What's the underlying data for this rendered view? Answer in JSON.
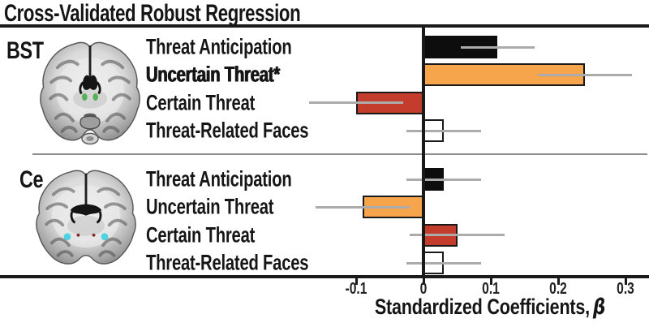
{
  "figure": {
    "title": "Cross-Validated Robust Regression"
  },
  "chart_data": {
    "type": "bar",
    "orientation": "horizontal",
    "title": "Cross-Validated Robust Regression",
    "xlabel": "Standardized Coefficients, β",
    "xlabel_text": "Standardized Coefficients,",
    "xlabel_symbol": "β",
    "xticks": [
      -0.1,
      0,
      0.1,
      0.2,
      0.3
    ],
    "xtick_labels": [
      "-0.1",
      "0",
      "0.1",
      "0.2",
      "0.3"
    ],
    "xlim": [
      -0.63,
      0.34
    ],
    "grid": false,
    "legend_position": "none",
    "error_bars": true,
    "bar_colors": {
      "black": "#0D0D0D",
      "orange": "#F6A54C",
      "red": "#C43C2B",
      "white": "#FFFFFF"
    },
    "bar_outline_color": "#1A1A1A",
    "error_bar_color": "#ABABAB",
    "groups": [
      {
        "name": "BST",
        "brain_icon": "coronal-brain-slice",
        "highlight_color": "#58B05A",
        "bars": [
          {
            "label": "Threat Anticipation",
            "value": 0.11,
            "ci": 0.055,
            "color": "black",
            "emphasized": false
          },
          {
            "label": "Uncertain Threat*",
            "value": 0.24,
            "ci": 0.07,
            "color": "orange",
            "emphasized": true
          },
          {
            "label": "Certain Threat",
            "value": -0.1,
            "ci": 0.07,
            "color": "red",
            "emphasized": false
          },
          {
            "label": "Threat-Related Faces",
            "value": 0.03,
            "ci": 0.055,
            "color": "white",
            "emphasized": false
          }
        ]
      },
      {
        "name": "Ce",
        "brain_icon": "coronal-brain-slice",
        "highlight_color": "#4FD2E2",
        "bars": [
          {
            "label": "Threat Anticipation",
            "value": 0.03,
            "ci": 0.055,
            "color": "black",
            "emphasized": false
          },
          {
            "label": "Uncertain Threat",
            "value": -0.09,
            "ci": 0.07,
            "color": "orange",
            "emphasized": false
          },
          {
            "label": "Certain Threat",
            "value": 0.05,
            "ci": 0.07,
            "color": "red",
            "emphasized": false
          },
          {
            "label": "Threat-Related Faces",
            "value": 0.03,
            "ci": 0.055,
            "color": "white",
            "emphasized": false
          }
        ]
      }
    ]
  }
}
